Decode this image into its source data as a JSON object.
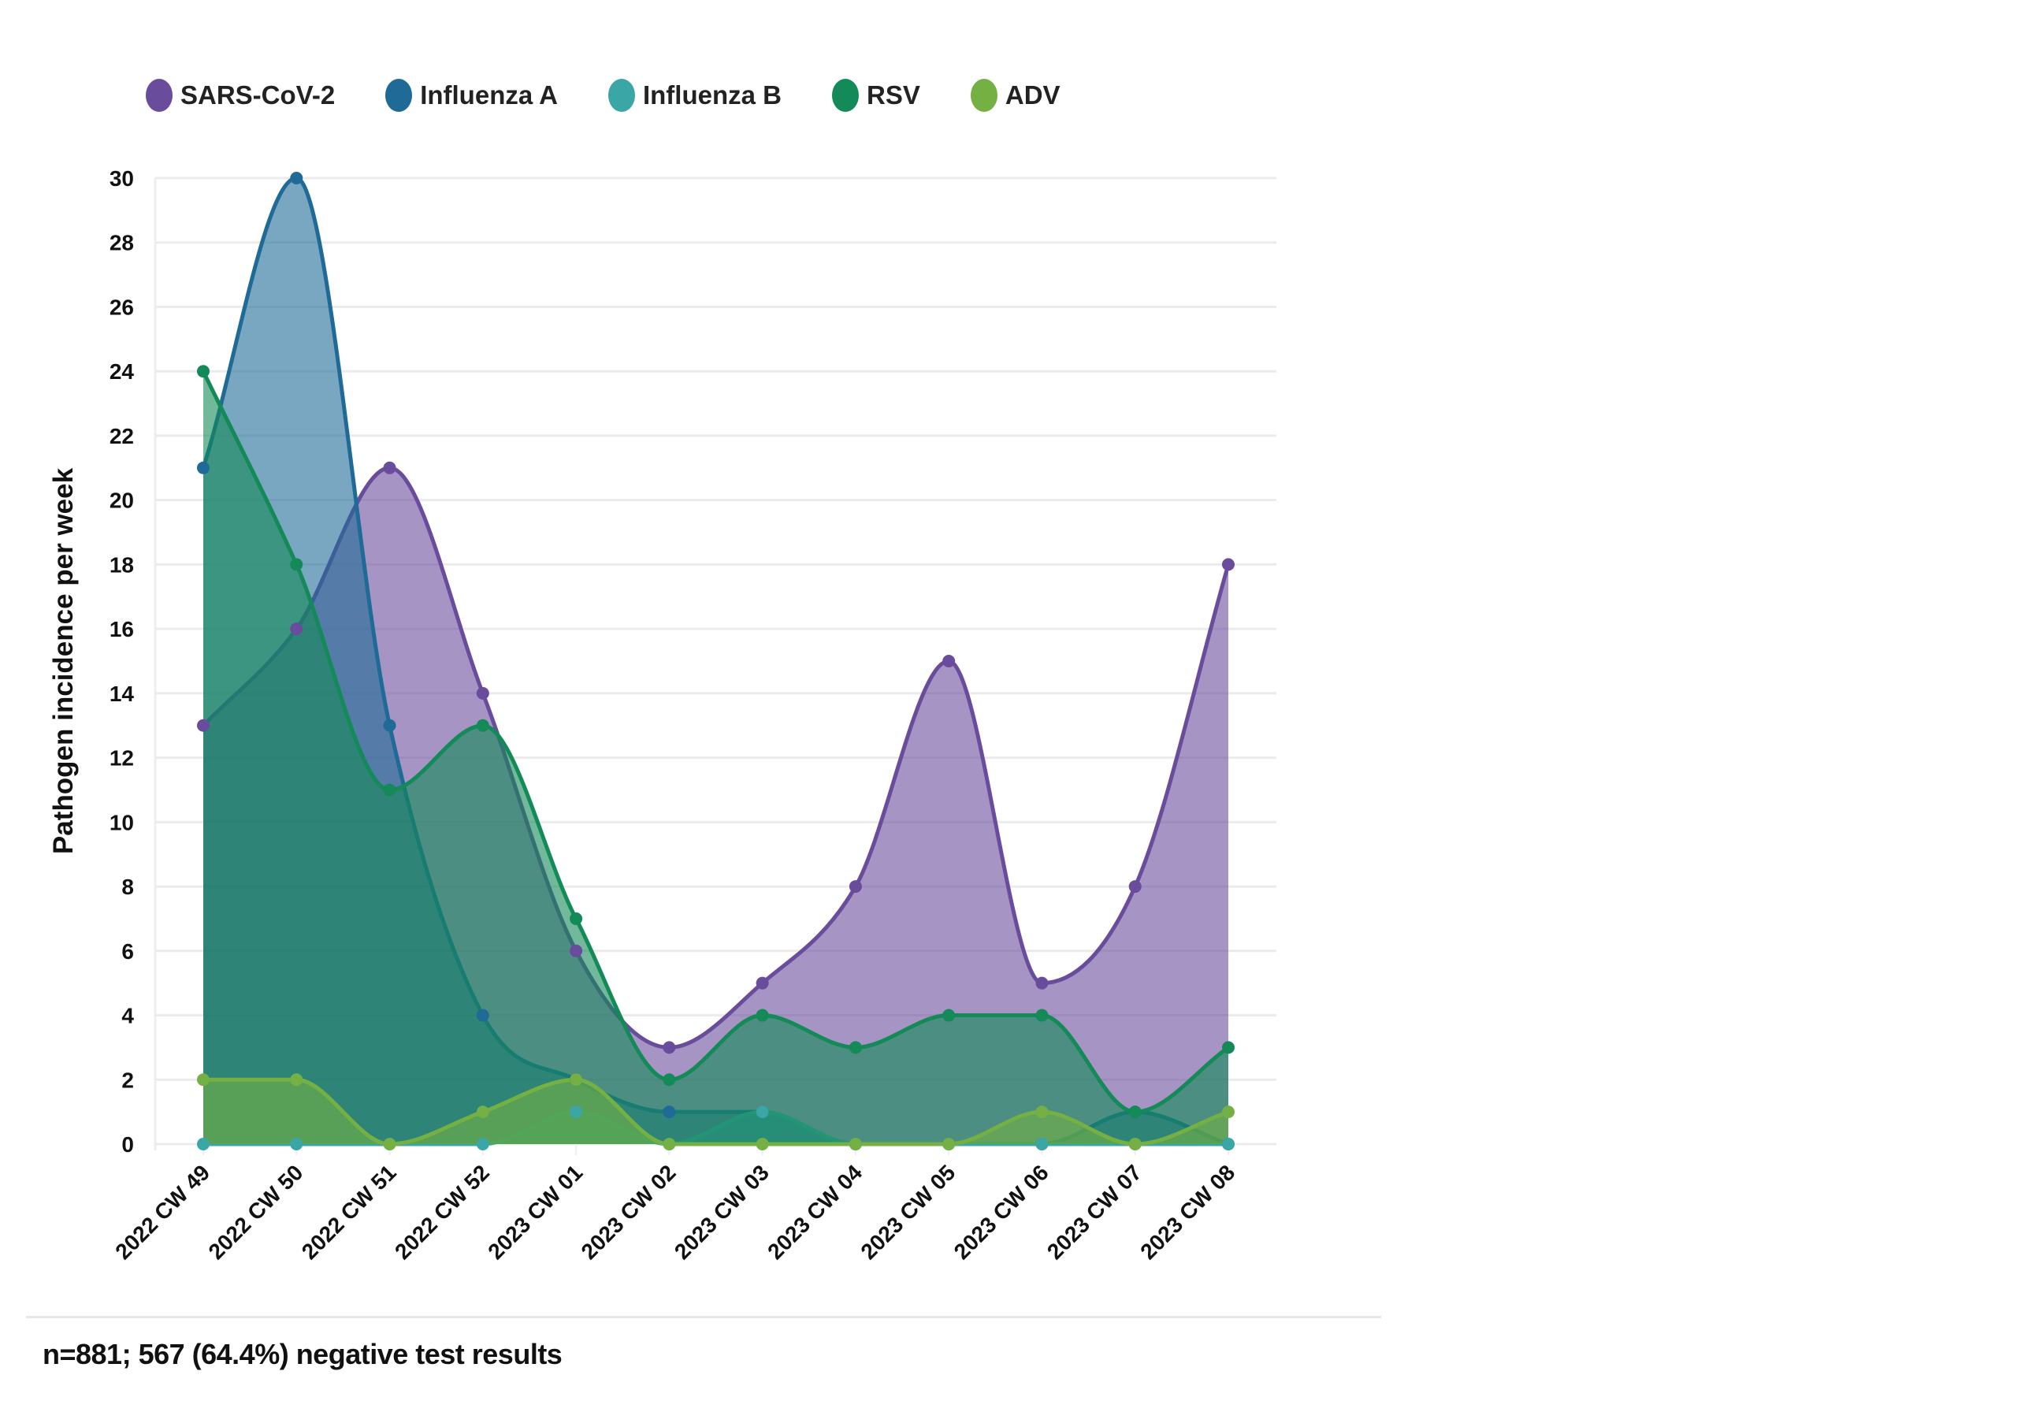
{
  "chart_data": {
    "type": "area",
    "title": "",
    "xlabel": "",
    "ylabel": "Pathogen incidence per week",
    "ylim": [
      0,
      30
    ],
    "yticks": [
      0,
      2,
      4,
      6,
      8,
      10,
      12,
      14,
      16,
      18,
      20,
      22,
      24,
      26,
      28,
      30
    ],
    "grid": true,
    "legend_position": "top-left",
    "categories": [
      "2022 CW 49",
      "2022 CW 50",
      "2022 CW 51",
      "2022 CW 52",
      "2023 CW 01",
      "2023 CW 02",
      "2023 CW 03",
      "2023 CW 04",
      "2023 CW 05",
      "2023 CW 06",
      "2023 CW 07",
      "2023 CW 08"
    ],
    "series": [
      {
        "name": "SARS-CoV-2",
        "color": "#6a4c9c",
        "values": [
          13,
          16,
          21,
          14,
          6,
          3,
          5,
          8,
          15,
          5,
          8,
          18
        ]
      },
      {
        "name": "Influenza A",
        "color": "#1f6a96",
        "values": [
          21,
          30,
          13,
          4,
          2,
          1,
          1,
          0,
          0,
          0,
          1,
          0
        ]
      },
      {
        "name": "Influenza B",
        "color": "#3aa6a6",
        "values": [
          0,
          0,
          0,
          0,
          1,
          0,
          1,
          0,
          0,
          0,
          0,
          0
        ]
      },
      {
        "name": "RSV",
        "color": "#138a57",
        "values": [
          24,
          18,
          11,
          13,
          7,
          2,
          4,
          3,
          4,
          4,
          1,
          3
        ]
      },
      {
        "name": "ADV",
        "color": "#74b043",
        "values": [
          2,
          2,
          0,
          1,
          2,
          0,
          0,
          0,
          0,
          1,
          0,
          1
        ]
      }
    ]
  },
  "footer": {
    "note": "n=881; 567 (64.4%) negative test results"
  }
}
